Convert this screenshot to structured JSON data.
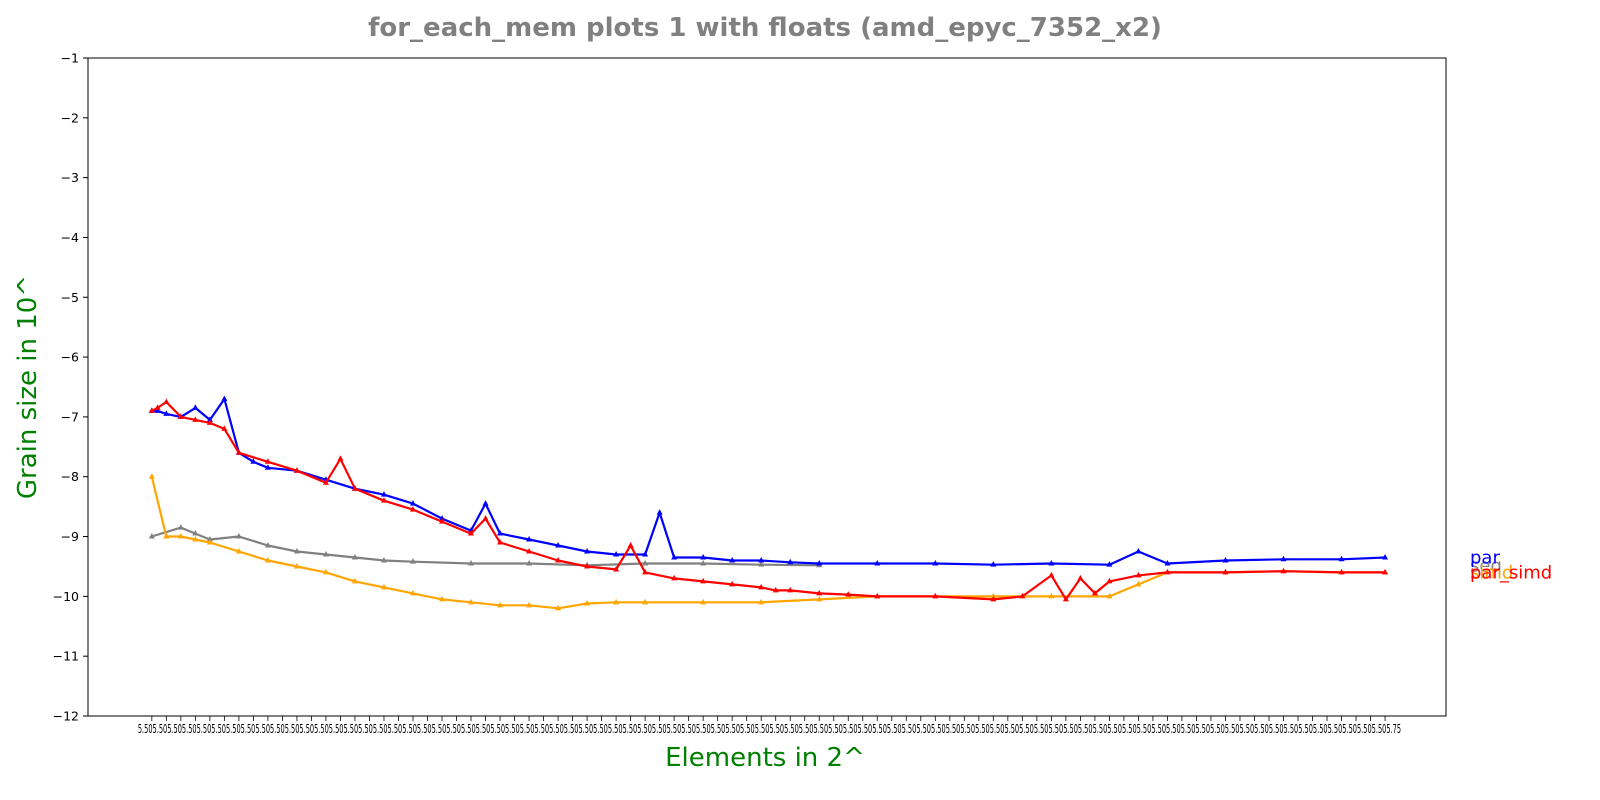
{
  "chart_data": {
    "type": "line",
    "title": "for_each_mem plots 1 with floats  (amd_epyc_7352_x2)",
    "xlabel": "Elements in 2^",
    "ylabel": "Grain size in 10^",
    "xlim": [
      4.4,
      27.8
    ],
    "ylim": [
      -12,
      -1
    ],
    "y_ticks": [
      -12,
      -11,
      -10,
      -9,
      -8,
      -7,
      -6,
      -5,
      -4,
      -3,
      -2,
      -1
    ],
    "y_tick_labels": [
      "−12",
      "−11",
      "−10",
      "−9",
      "−8",
      "−7",
      "−6",
      "−5",
      "−4",
      "−3",
      "−2",
      "−1"
    ],
    "x_start": 5.5,
    "x_end": 26.75,
    "x_step": 0.25,
    "x_tick_label_text": "5.505.505.505.505.505.505.505.505.505.505.505.505.505.505.505.505.505.505.505.505.505.505.505.505.505.505.505.505.505.505.505.505.505.505.505.505.505.505.505.505.505.505.505.505.505.505.505.505.505.505.505.505.505.505.505.505.505.505.505.505.505.505.505.505.505.505.505.505.505.505.505.505.505.505.505.505.505.505.505.505.505.505.505.505.505.75",
    "series": [
      {
        "name": "seq",
        "color": "#808080",
        "x": [
          5.5,
          6.0,
          6.25,
          6.5,
          7.0,
          7.5,
          8.0,
          8.5,
          9.0,
          9.5,
          10.0,
          11.0,
          12.0,
          13.0,
          14.0,
          15.0,
          16.0,
          17.0
        ],
        "y": [
          -9.0,
          -8.85,
          -8.95,
          -9.05,
          -9.0,
          -9.15,
          -9.25,
          -9.3,
          -9.35,
          -9.4,
          -9.42,
          -9.45,
          -9.45,
          -9.48,
          -9.45,
          -9.45,
          -9.47,
          -9.48
        ]
      },
      {
        "name": "par",
        "color": "#0000ff",
        "x": [
          5.5,
          5.6,
          5.75,
          6.0,
          6.25,
          6.5,
          6.75,
          7.0,
          7.25,
          7.5,
          8.0,
          8.5,
          9.0,
          9.5,
          10.0,
          10.5,
          11.0,
          11.25,
          11.5,
          12.0,
          12.5,
          13.0,
          13.5,
          14.0,
          14.25,
          14.5,
          15.0,
          15.5,
          16.0,
          16.5,
          17.0,
          18.0,
          19.0,
          20.0,
          21.0,
          22.0,
          22.5,
          23.0,
          24.0,
          25.0,
          26.0,
          26.75
        ],
        "y": [
          -6.9,
          -6.9,
          -6.95,
          -7.0,
          -6.85,
          -7.05,
          -6.7,
          -7.6,
          -7.75,
          -7.85,
          -7.9,
          -8.05,
          -8.2,
          -8.3,
          -8.45,
          -8.7,
          -8.9,
          -8.45,
          -8.95,
          -9.05,
          -9.15,
          -9.25,
          -9.3,
          -9.3,
          -8.6,
          -9.35,
          -9.35,
          -9.4,
          -9.4,
          -9.43,
          -9.45,
          -9.45,
          -9.45,
          -9.47,
          -9.45,
          -9.47,
          -9.25,
          -9.45,
          -9.4,
          -9.38,
          -9.38,
          -9.35
        ]
      },
      {
        "name": "simd",
        "color": "#ffa500",
        "x": [
          5.5,
          5.75,
          6.0,
          6.25,
          6.5,
          7.0,
          7.5,
          8.0,
          8.5,
          9.0,
          9.5,
          10.0,
          10.5,
          11.0,
          11.5,
          12.0,
          12.5,
          13.0,
          13.5,
          14.0,
          15.0,
          16.0,
          17.0,
          18.0,
          19.0,
          20.0,
          21.0,
          22.0,
          22.5,
          23.0,
          24.0,
          25.0,
          26.0,
          26.75
        ],
        "y": [
          -8.0,
          -9.0,
          -9.0,
          -9.05,
          -9.1,
          -9.25,
          -9.4,
          -9.5,
          -9.6,
          -9.75,
          -9.85,
          -9.95,
          -10.05,
          -10.1,
          -10.15,
          -10.15,
          -10.2,
          -10.12,
          -10.1,
          -10.1,
          -10.1,
          -10.1,
          -10.05,
          -10.0,
          -10.0,
          -10.0,
          -10.0,
          -10.0,
          -9.8,
          -9.6,
          -9.6,
          -9.58,
          -9.6,
          -9.6
        ]
      },
      {
        "name": "par_simd",
        "color": "#ff0000",
        "x": [
          5.5,
          5.6,
          5.75,
          6.0,
          6.25,
          6.5,
          6.75,
          7.0,
          7.5,
          8.0,
          8.5,
          8.75,
          9.0,
          9.5,
          10.0,
          10.5,
          11.0,
          11.25,
          11.5,
          12.0,
          12.5,
          13.0,
          13.5,
          13.75,
          14.0,
          14.5,
          15.0,
          15.5,
          16.0,
          16.25,
          16.5,
          17.0,
          17.5,
          18.0,
          19.0,
          20.0,
          20.5,
          21.0,
          21.25,
          21.5,
          21.75,
          22.0,
          22.5,
          23.0,
          24.0,
          25.0,
          26.0,
          26.75
        ],
        "y": [
          -6.9,
          -6.85,
          -6.75,
          -7.0,
          -7.05,
          -7.1,
          -7.2,
          -7.6,
          -7.75,
          -7.9,
          -8.1,
          -7.7,
          -8.2,
          -8.4,
          -8.55,
          -8.75,
          -8.95,
          -8.7,
          -9.1,
          -9.25,
          -9.4,
          -9.5,
          -9.55,
          -9.15,
          -9.6,
          -9.7,
          -9.75,
          -9.8,
          -9.85,
          -9.9,
          -9.9,
          -9.95,
          -9.97,
          -10.0,
          -10.0,
          -10.05,
          -10.0,
          -9.65,
          -10.05,
          -9.7,
          -9.95,
          -9.75,
          -9.65,
          -9.6,
          -9.6,
          -9.58,
          -9.6,
          -9.6
        ]
      }
    ],
    "legend": {
      "placement": "right"
    }
  }
}
